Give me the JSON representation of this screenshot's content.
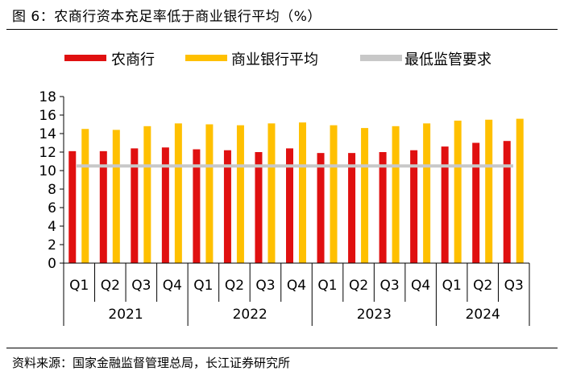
{
  "title": "图 6：农商行资本充足率低于商业银行平均（%）",
  "source": "资料来源：国家金融监督管理总局，长江证券研究所",
  "chart_data": {
    "type": "bar",
    "years": [
      "2021",
      "2022",
      "2023",
      "2024"
    ],
    "quarters": [
      "Q1",
      "Q2",
      "Q3",
      "Q4",
      "Q1",
      "Q2",
      "Q3",
      "Q4",
      "Q1",
      "Q2",
      "Q3",
      "Q4",
      "Q1",
      "Q2",
      "Q3"
    ],
    "series": [
      {
        "name": "农商行",
        "color": "#e01010",
        "values": [
          12.1,
          12.1,
          12.4,
          12.5,
          12.3,
          12.2,
          12.0,
          12.4,
          11.9,
          11.9,
          12.0,
          12.2,
          12.6,
          13.0,
          13.2
        ]
      },
      {
        "name": "商业银行平均",
        "color": "#ffc000",
        "values": [
          14.5,
          14.4,
          14.8,
          15.1,
          15.0,
          14.9,
          15.1,
          15.2,
          14.9,
          14.6,
          14.8,
          15.1,
          15.4,
          15.5,
          15.6
        ]
      }
    ],
    "reference_line": {
      "name": "最低监管要求",
      "value": 10.5,
      "color": "#c8c8c8"
    },
    "ylim": [
      0,
      18
    ],
    "yticks": [
      0,
      2,
      4,
      6,
      8,
      10,
      12,
      14,
      16,
      18
    ],
    "legend_position": "top"
  }
}
